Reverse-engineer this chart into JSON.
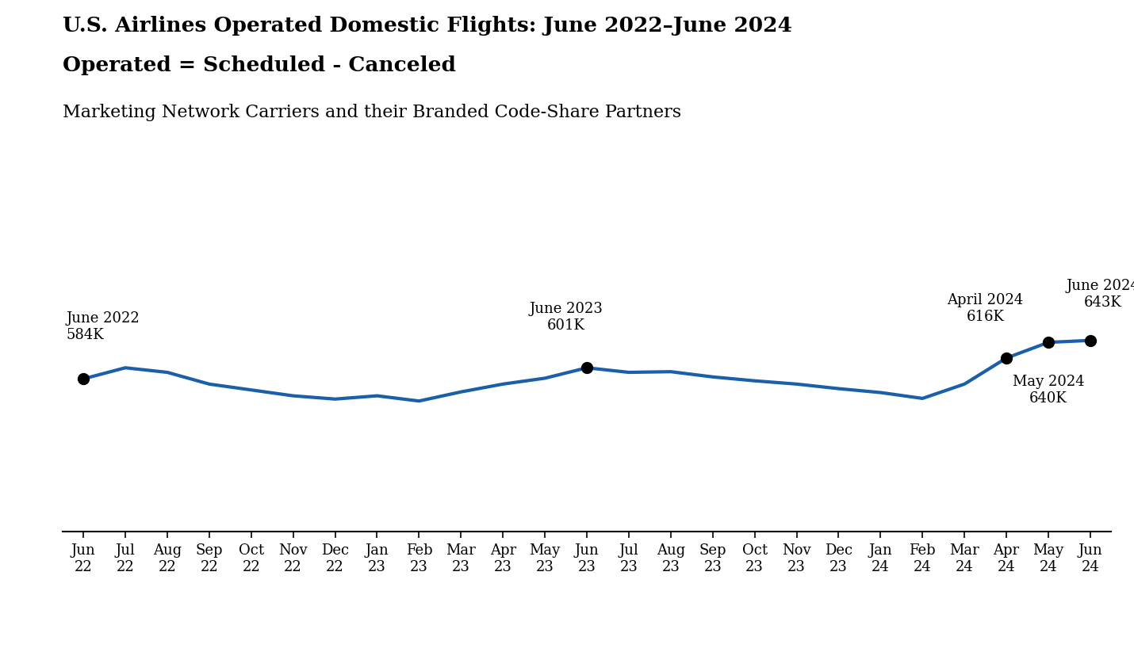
{
  "title_line1": "U.S. Airlines Operated Domestic Flights: June 2022–June 2024",
  "title_line2": "Operated = Scheduled - Canceled",
  "subtitle": "Marketing Network Carriers and their Branded Code-Share Partners",
  "line_color": "#1a5fa8",
  "line_width": 3.0,
  "background_color": "#ffffff",
  "x_labels_top": [
    "Jun",
    "Jul",
    "Aug",
    "Sep",
    "Oct",
    "Nov",
    "Dec",
    "Jan",
    "Feb",
    "Mar",
    "Apr",
    "May",
    "Jun",
    "Jul",
    "Aug",
    "Sep",
    "Oct",
    "Nov",
    "Dec",
    "Jan",
    "Feb",
    "Mar",
    "Apr",
    "May",
    "Jun"
  ],
  "x_labels_bottom": [
    "22",
    "22",
    "22",
    "22",
    "22",
    "22",
    "22",
    "23",
    "23",
    "23",
    "23",
    "23",
    "23",
    "23",
    "23",
    "23",
    "23",
    "23",
    "23",
    "24",
    "24",
    "24",
    "24",
    "24",
    "24"
  ],
  "values": [
    584,
    601,
    594,
    576,
    567,
    558,
    553,
    558,
    550,
    564,
    576,
    585,
    601,
    594,
    595,
    587,
    581,
    576,
    569,
    563,
    554,
    576,
    616,
    640,
    643
  ],
  "annotated_indices": [
    0,
    12,
    22,
    23,
    24
  ],
  "title_fontsize": 19,
  "subtitle_fontsize": 16,
  "tick_fontsize": 13,
  "annotation_fontsize": 13
}
